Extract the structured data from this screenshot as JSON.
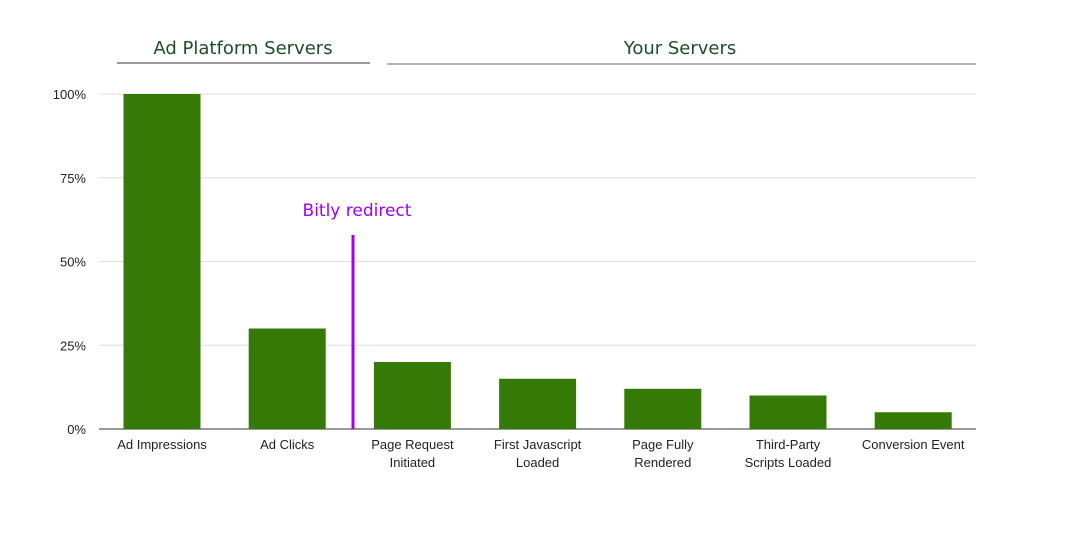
{
  "groups": [
    {
      "label": "Ad Platform Servers",
      "range": [
        "Ad Impressions",
        "Ad Clicks"
      ]
    },
    {
      "label": "Your Servers",
      "range": [
        "Page Request Initiated",
        "Conversion Event"
      ]
    }
  ],
  "annotation": {
    "label": "Bitly redirect",
    "between": [
      "Ad Clicks",
      "Page Request Initiated"
    ],
    "color": "#9b00ff"
  },
  "chart_data": {
    "type": "bar",
    "categories": [
      [
        "Ad Impressions"
      ],
      [
        "Ad Clicks"
      ],
      [
        "Page Request",
        "Initiated"
      ],
      [
        "First Javascript",
        "Loaded"
      ],
      [
        "Page Fully",
        "Rendered"
      ],
      [
        "Third-Party",
        "Scripts Loaded"
      ],
      [
        "Conversion Event"
      ]
    ],
    "values": [
      100,
      30,
      20,
      15,
      12,
      10,
      5
    ],
    "ylim": [
      0,
      100
    ],
    "yticks": [
      "0%",
      "25%",
      "50%",
      "75%",
      "100%"
    ],
    "grid": true,
    "bar_color": "#357a06",
    "title": "",
    "xlabel": "",
    "ylabel": ""
  }
}
